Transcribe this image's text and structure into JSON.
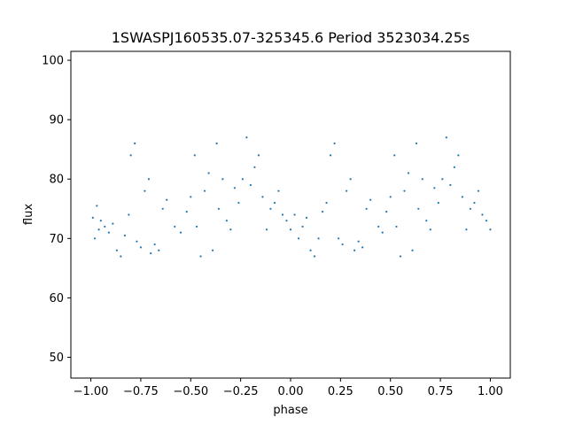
{
  "chart_data": {
    "type": "scatter",
    "title": "1SWASPJ160535.07-325345.6 Period 3523034.25s",
    "xlabel": "phase",
    "ylabel": "flux",
    "xlim": [
      -1.1,
      1.1
    ],
    "ylim": [
      46.5,
      101.5
    ],
    "xticks": [
      -1.0,
      -0.75,
      -0.5,
      -0.25,
      0.0,
      0.25,
      0.5,
      0.75,
      1.0
    ],
    "xtick_labels": [
      "−1.00",
      "−0.75",
      "−0.50",
      "−0.25",
      "0.00",
      "0.25",
      "0.50",
      "0.75",
      "1.00"
    ],
    "yticks": [
      50,
      60,
      70,
      80,
      90,
      100
    ],
    "ytick_labels": [
      "50",
      "60",
      "70",
      "80",
      "90",
      "100"
    ],
    "grid": false,
    "point_color": "#1f77b4",
    "series": [
      {
        "values": [
          [
            -0.99,
            73.5
          ],
          [
            -0.98,
            70.0
          ],
          [
            -0.97,
            75.5
          ],
          [
            -0.96,
            71.5
          ],
          [
            -0.95,
            73.0
          ],
          [
            -0.93,
            72.0
          ],
          [
            -0.91,
            71.0
          ],
          [
            -0.89,
            72.5
          ],
          [
            -0.87,
            68.0
          ],
          [
            -0.85,
            67.0
          ],
          [
            -0.83,
            70.5
          ],
          [
            -0.81,
            74.0
          ],
          [
            -0.8,
            84.0
          ],
          [
            -0.78,
            86.0
          ],
          [
            -0.77,
            69.5
          ],
          [
            -0.75,
            68.5
          ],
          [
            -0.73,
            78.0
          ],
          [
            -0.71,
            80.0
          ],
          [
            -0.7,
            67.5
          ],
          [
            -0.68,
            69.0
          ],
          [
            -0.66,
            68.0
          ],
          [
            -0.64,
            75.0
          ],
          [
            -0.62,
            76.5
          ],
          [
            -0.58,
            72.0
          ],
          [
            -0.55,
            71.0
          ],
          [
            -0.52,
            74.5
          ],
          [
            -0.5,
            77.0
          ],
          [
            -0.48,
            84.0
          ],
          [
            -0.47,
            72.0
          ],
          [
            -0.45,
            67.0
          ],
          [
            -0.43,
            78.0
          ],
          [
            -0.41,
            81.0
          ],
          [
            -0.39,
            68.0
          ],
          [
            -0.37,
            86.0
          ],
          [
            -0.36,
            75.0
          ],
          [
            -0.34,
            80.0
          ],
          [
            -0.32,
            73.0
          ],
          [
            -0.3,
            71.5
          ],
          [
            -0.28,
            78.5
          ],
          [
            -0.26,
            76.0
          ],
          [
            -0.24,
            80.0
          ],
          [
            -0.22,
            87.0
          ],
          [
            -0.2,
            79.0
          ],
          [
            -0.18,
            82.0
          ],
          [
            -0.16,
            84.0
          ],
          [
            -0.14,
            77.0
          ],
          [
            -0.12,
            71.5
          ],
          [
            -0.1,
            75.0
          ],
          [
            -0.08,
            76.0
          ],
          [
            -0.06,
            78.0
          ],
          [
            -0.04,
            74.0
          ],
          [
            -0.02,
            73.0
          ],
          [
            0.0,
            71.5
          ],
          [
            0.02,
            74.0
          ],
          [
            0.04,
            70.0
          ],
          [
            0.06,
            72.0
          ],
          [
            0.08,
            73.5
          ],
          [
            0.1,
            68.0
          ],
          [
            0.12,
            67.0
          ],
          [
            0.14,
            70.0
          ],
          [
            0.16,
            74.5
          ],
          [
            0.18,
            76.0
          ],
          [
            0.2,
            84.0
          ],
          [
            0.22,
            86.0
          ],
          [
            0.24,
            70.0
          ],
          [
            0.26,
            69.0
          ],
          [
            0.28,
            78.0
          ],
          [
            0.3,
            80.0
          ],
          [
            0.32,
            68.0
          ],
          [
            0.34,
            69.5
          ],
          [
            0.36,
            68.5
          ],
          [
            0.38,
            75.0
          ],
          [
            0.4,
            76.5
          ],
          [
            0.44,
            72.0
          ],
          [
            0.46,
            71.0
          ],
          [
            0.48,
            74.5
          ],
          [
            0.5,
            77.0
          ],
          [
            0.52,
            84.0
          ],
          [
            0.53,
            72.0
          ],
          [
            0.55,
            67.0
          ],
          [
            0.57,
            78.0
          ],
          [
            0.59,
            81.0
          ],
          [
            0.61,
            68.0
          ],
          [
            0.63,
            86.0
          ],
          [
            0.64,
            75.0
          ],
          [
            0.66,
            80.0
          ],
          [
            0.68,
            73.0
          ],
          [
            0.7,
            71.5
          ],
          [
            0.72,
            78.5
          ],
          [
            0.74,
            76.0
          ],
          [
            0.76,
            80.0
          ],
          [
            0.78,
            87.0
          ],
          [
            0.8,
            79.0
          ],
          [
            0.82,
            82.0
          ],
          [
            0.84,
            84.0
          ],
          [
            0.86,
            77.0
          ],
          [
            0.88,
            71.5
          ],
          [
            0.9,
            75.0
          ],
          [
            0.92,
            76.0
          ],
          [
            0.94,
            78.0
          ],
          [
            0.96,
            74.0
          ],
          [
            0.98,
            73.0
          ],
          [
            1.0,
            71.5
          ]
        ]
      }
    ]
  }
}
